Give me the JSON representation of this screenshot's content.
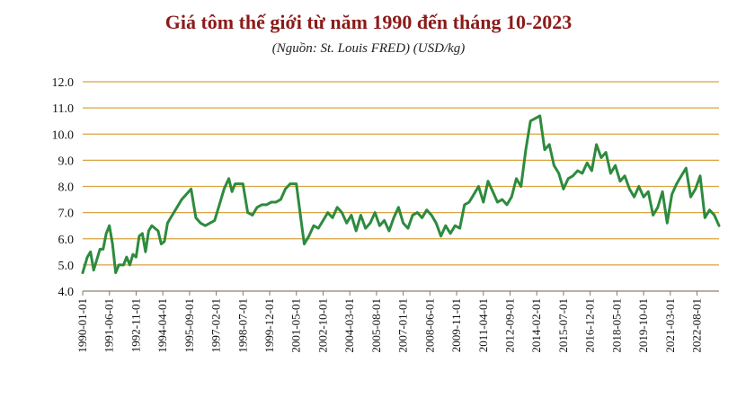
{
  "chart_data": {
    "type": "line",
    "title": "Giá tôm thế giới từ năm 1990 đến tháng 10-2023",
    "subtitle": "(Nguồn: St. Louis FRED) (USD/kg)",
    "xlabel": "",
    "ylabel": "",
    "ylim": [
      4.0,
      12.0
    ],
    "yticks": [
      "4.0",
      "5.0",
      "6.0",
      "7.0",
      "8.0",
      "9.0",
      "10.0",
      "11.0",
      "12.0"
    ],
    "xticks": [
      "1990-01-01",
      "1991-06-01",
      "1992-11-01",
      "1994-04-01",
      "1995-09-01",
      "1997-02-01",
      "1998-07-01",
      "1999-12-01",
      "2001-05-01",
      "2002-10-01",
      "2004-03-01",
      "2005-08-01",
      "2007-01-01",
      "2008-06-01",
      "2009-11-01",
      "2011-04-01",
      "2012-09-01",
      "2014-02-01",
      "2015-07-01",
      "2016-12-01",
      "2018-05-01",
      "2019-10-01",
      "2021-03-01",
      "2022-08-01"
    ],
    "grid": "horizontal",
    "line_color": "#2e8b3e",
    "grid_color": "#d9a441",
    "series": [
      {
        "points": [
          [
            "1990-01",
            4.7
          ],
          [
            "1990-04",
            5.3
          ],
          [
            "1990-06",
            5.5
          ],
          [
            "1990-08",
            4.8
          ],
          [
            "1990-10",
            5.2
          ],
          [
            "1990-12",
            5.6
          ],
          [
            "1991-02",
            5.6
          ],
          [
            "1991-04",
            6.2
          ],
          [
            "1991-06",
            6.5
          ],
          [
            "1991-08",
            5.8
          ],
          [
            "1991-10",
            4.7
          ],
          [
            "1991-12",
            5.0
          ],
          [
            "1992-03",
            5.0
          ],
          [
            "1992-05",
            5.3
          ],
          [
            "1992-07",
            5.0
          ],
          [
            "1992-09",
            5.4
          ],
          [
            "1992-11",
            5.3
          ],
          [
            "1993-01",
            6.1
          ],
          [
            "1993-03",
            6.2
          ],
          [
            "1993-05",
            5.5
          ],
          [
            "1993-07",
            6.3
          ],
          [
            "1993-09",
            6.5
          ],
          [
            "1993-11",
            6.4
          ],
          [
            "1994-01",
            6.3
          ],
          [
            "1994-03",
            5.8
          ],
          [
            "1994-05",
            5.9
          ],
          [
            "1994-07",
            6.6
          ],
          [
            "1994-09",
            6.8
          ],
          [
            "1994-11",
            7.0
          ],
          [
            "1995-01",
            7.2
          ],
          [
            "1995-04",
            7.5
          ],
          [
            "1995-07",
            7.7
          ],
          [
            "1995-10",
            7.9
          ],
          [
            "1996-01",
            6.8
          ],
          [
            "1996-04",
            6.6
          ],
          [
            "1996-07",
            6.5
          ],
          [
            "1996-10",
            6.6
          ],
          [
            "1997-01",
            6.7
          ],
          [
            "1997-04",
            7.3
          ],
          [
            "1997-07",
            7.9
          ],
          [
            "1997-10",
            8.3
          ],
          [
            "1997-12",
            7.8
          ],
          [
            "1998-02",
            8.1
          ],
          [
            "1998-04",
            8.1
          ],
          [
            "1998-07",
            8.1
          ],
          [
            "1998-10",
            7.0
          ],
          [
            "1999-01",
            6.9
          ],
          [
            "1999-04",
            7.2
          ],
          [
            "1999-07",
            7.3
          ],
          [
            "1999-10",
            7.3
          ],
          [
            "2000-01",
            7.4
          ],
          [
            "2000-04",
            7.4
          ],
          [
            "2000-07",
            7.5
          ],
          [
            "2000-10",
            7.9
          ],
          [
            "2001-01",
            8.1
          ],
          [
            "2001-05",
            8.1
          ],
          [
            "2001-08",
            6.7
          ],
          [
            "2001-10",
            5.8
          ],
          [
            "2002-01",
            6.1
          ],
          [
            "2002-04",
            6.5
          ],
          [
            "2002-07",
            6.4
          ],
          [
            "2002-10",
            6.7
          ],
          [
            "2003-01",
            7.0
          ],
          [
            "2003-04",
            6.8
          ],
          [
            "2003-07",
            7.2
          ],
          [
            "2003-10",
            7.0
          ],
          [
            "2004-01",
            6.6
          ],
          [
            "2004-04",
            6.9
          ],
          [
            "2004-07",
            6.3
          ],
          [
            "2004-10",
            6.9
          ],
          [
            "2005-01",
            6.4
          ],
          [
            "2005-04",
            6.6
          ],
          [
            "2005-07",
            7.0
          ],
          [
            "2005-10",
            6.5
          ],
          [
            "2006-01",
            6.7
          ],
          [
            "2006-04",
            6.3
          ],
          [
            "2006-07",
            6.8
          ],
          [
            "2006-10",
            7.2
          ],
          [
            "2007-01",
            6.6
          ],
          [
            "2007-04",
            6.4
          ],
          [
            "2007-07",
            6.9
          ],
          [
            "2007-10",
            7.0
          ],
          [
            "2008-01",
            6.8
          ],
          [
            "2008-04",
            7.1
          ],
          [
            "2008-07",
            6.9
          ],
          [
            "2008-10",
            6.6
          ],
          [
            "2009-01",
            6.1
          ],
          [
            "2009-04",
            6.5
          ],
          [
            "2009-07",
            6.2
          ],
          [
            "2009-10",
            6.5
          ],
          [
            "2010-01",
            6.4
          ],
          [
            "2010-04",
            7.3
          ],
          [
            "2010-07",
            7.4
          ],
          [
            "2010-10",
            7.7
          ],
          [
            "2011-01",
            8.0
          ],
          [
            "2011-04",
            7.4
          ],
          [
            "2011-07",
            8.2
          ],
          [
            "2011-10",
            7.8
          ],
          [
            "2012-01",
            7.4
          ],
          [
            "2012-04",
            7.5
          ],
          [
            "2012-07",
            7.3
          ],
          [
            "2012-10",
            7.6
          ],
          [
            "2013-01",
            8.3
          ],
          [
            "2013-04",
            8.0
          ],
          [
            "2013-07",
            9.4
          ],
          [
            "2013-10",
            10.5
          ],
          [
            "2014-01",
            10.6
          ],
          [
            "2014-04",
            10.7
          ],
          [
            "2014-07",
            9.4
          ],
          [
            "2014-10",
            9.6
          ],
          [
            "2015-01",
            8.8
          ],
          [
            "2015-04",
            8.5
          ],
          [
            "2015-07",
            7.9
          ],
          [
            "2015-10",
            8.3
          ],
          [
            "2016-01",
            8.4
          ],
          [
            "2016-04",
            8.6
          ],
          [
            "2016-07",
            8.5
          ],
          [
            "2016-10",
            8.9
          ],
          [
            "2017-01",
            8.6
          ],
          [
            "2017-04",
            9.6
          ],
          [
            "2017-07",
            9.1
          ],
          [
            "2017-10",
            9.3
          ],
          [
            "2018-01",
            8.5
          ],
          [
            "2018-04",
            8.8
          ],
          [
            "2018-07",
            8.2
          ],
          [
            "2018-10",
            8.4
          ],
          [
            "2019-01",
            7.9
          ],
          [
            "2019-04",
            7.6
          ],
          [
            "2019-07",
            8.0
          ],
          [
            "2019-10",
            7.6
          ],
          [
            "2020-01",
            7.8
          ],
          [
            "2020-04",
            6.9
          ],
          [
            "2020-07",
            7.2
          ],
          [
            "2020-10",
            7.8
          ],
          [
            "2021-01",
            6.6
          ],
          [
            "2021-04",
            7.7
          ],
          [
            "2021-07",
            8.1
          ],
          [
            "2021-10",
            8.4
          ],
          [
            "2022-01",
            8.7
          ],
          [
            "2022-04",
            7.6
          ],
          [
            "2022-07",
            7.9
          ],
          [
            "2022-10",
            8.4
          ],
          [
            "2023-01",
            6.8
          ],
          [
            "2023-04",
            7.1
          ],
          [
            "2023-07",
            6.9
          ],
          [
            "2023-10",
            6.5
          ]
        ]
      }
    ]
  }
}
